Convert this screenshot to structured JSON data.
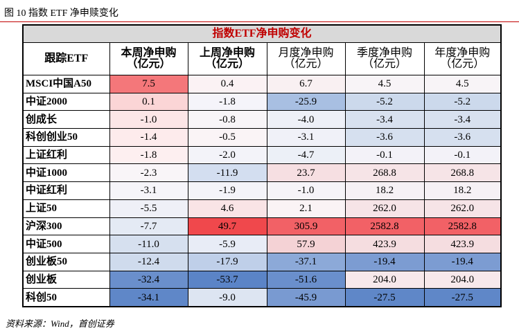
{
  "caption": "图 10 指数 ETF 净申赎变化",
  "table": {
    "title": "指数ETF净申购变化",
    "header": [
      [
        "跟踪ETF"
      ],
      [
        "本周净申购",
        "（亿元）"
      ],
      [
        "上周净申购",
        "（亿元）"
      ],
      [
        "月度净申购",
        "（亿元）"
      ],
      [
        "季度净申购",
        "（亿元）"
      ],
      [
        "年度净申购",
        "（亿元）"
      ]
    ],
    "rows": [
      [
        "MSCI中国A50",
        "7.5",
        "0.4",
        "6.7",
        "4.5",
        "4.5"
      ],
      [
        "中证2000",
        "0.1",
        "-1.8",
        "-25.9",
        "-5.2",
        "-5.2"
      ],
      [
        "创成长",
        "-1.0",
        "-0.8",
        "-4.0",
        "-3.4",
        "-3.4"
      ],
      [
        "科创创业50",
        "-1.4",
        "-0.5",
        "-3.1",
        "-3.6",
        "-3.6"
      ],
      [
        "上证红利",
        "-1.8",
        "-2.0",
        "-4.7",
        "-0.1",
        "-0.1"
      ],
      [
        "中证1000",
        "-2.3",
        "-11.9",
        "23.7",
        "268.8",
        "268.8"
      ],
      [
        "中证红利",
        "-3.1",
        "-1.9",
        "-1.0",
        "18.2",
        "18.2"
      ],
      [
        "上证50",
        "-5.5",
        "4.6",
        "2.1",
        "262.0",
        "262.0"
      ],
      [
        "沪深300",
        "-7.7",
        "49.7",
        "305.9",
        "2582.8",
        "2582.8"
      ],
      [
        "中证500",
        "-11.0",
        "-5.9",
        "57.9",
        "423.9",
        "423.9"
      ],
      [
        "创业板50",
        "-12.4",
        "-17.9",
        "-37.1",
        "-19.4",
        "-19.4"
      ],
      [
        "创业板",
        "-32.4",
        "-53.7",
        "-51.6",
        "204.0",
        "204.0"
      ],
      [
        "科创50",
        "-34.1",
        "-9.0",
        "-45.9",
        "-27.5",
        "-27.5"
      ]
    ]
  },
  "source": "资料来源：Wind，首创证券"
}
